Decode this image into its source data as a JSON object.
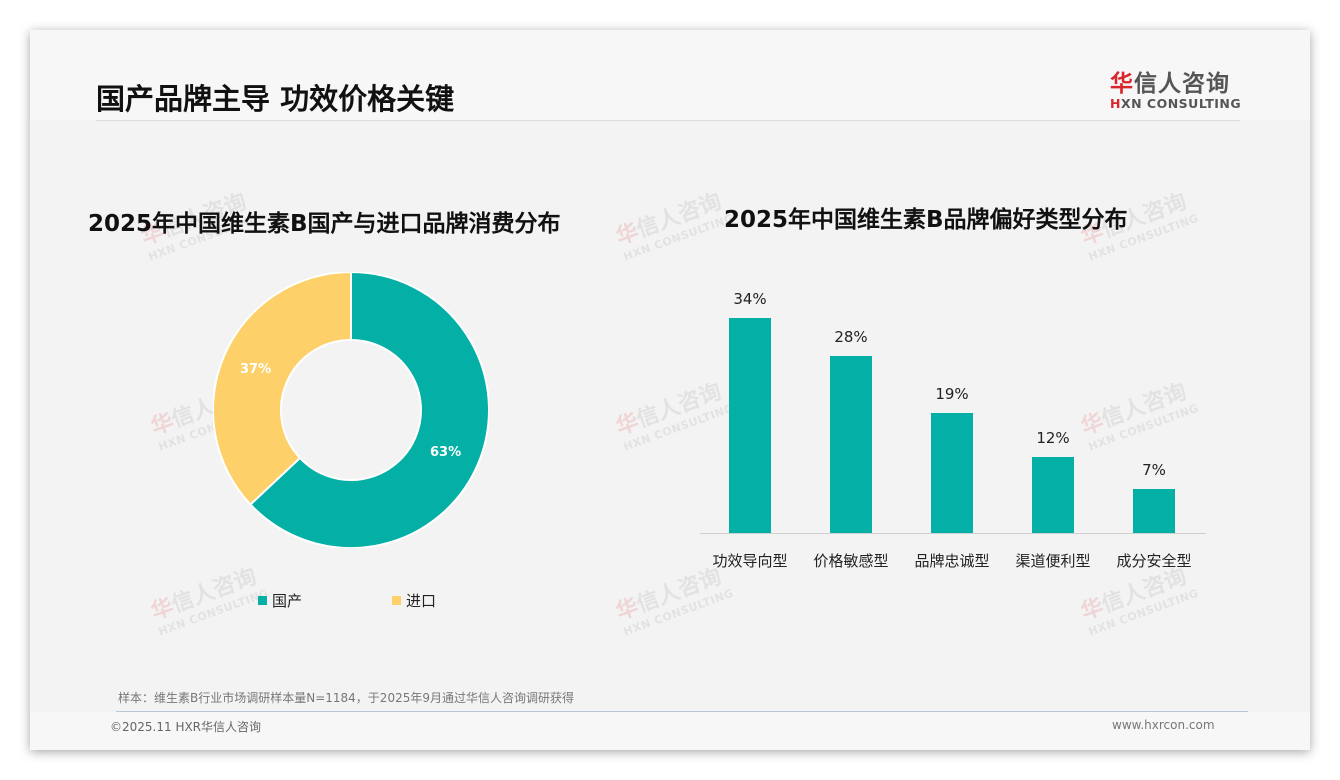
{
  "page": {
    "title": "国产品牌主导 功效价格关键",
    "logo": {
      "cn_first": "华",
      "cn_rest": "信人咨询",
      "en_first": "H",
      "en_rest": "XN CONSULTING"
    },
    "watermark": {
      "cn_first": "华",
      "cn_rest": "信人咨询",
      "en": "HXN CONSULTING"
    },
    "note": "样本：维生素B行业市场调研样本量N=1184，于2025年9月通过华信人咨询调研获得",
    "copyright": "©2025.11 HXR华信人咨询",
    "website": "www.hxrcon.com"
  },
  "colors": {
    "teal": "#04afa6",
    "yellow": "#fdd06a",
    "brand_red": "#d8262c"
  },
  "chart_data": [
    {
      "type": "pie",
      "variant": "donut",
      "title": "2025年中国维生素B国产与进口品牌消费分布",
      "categories": [
        "国产",
        "进口"
      ],
      "values": [
        63,
        37
      ],
      "labels": [
        "63%",
        "37%"
      ],
      "colors": [
        "#04afa6",
        "#fdd06a"
      ],
      "legend_position": "bottom"
    },
    {
      "type": "bar",
      "title": "2025年中国维生素B品牌偏好类型分布",
      "categories": [
        "功效导向型",
        "价格敏感型",
        "品牌忠诚型",
        "渠道便利型",
        "成分安全型"
      ],
      "values": [
        34,
        28,
        19,
        12,
        7
      ],
      "labels": [
        "34%",
        "28%",
        "19%",
        "12%",
        "7%"
      ],
      "xlabel": "",
      "ylabel": "",
      "ylim": [
        0,
        40
      ],
      "grid": false,
      "color": "#04afa6"
    }
  ]
}
